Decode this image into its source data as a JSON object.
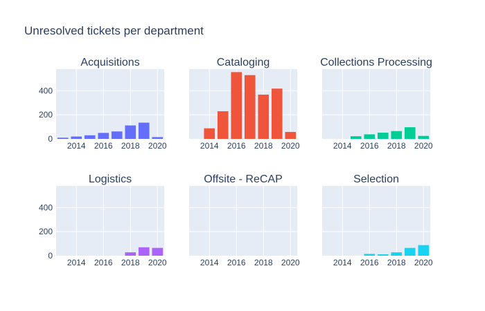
{
  "chart_data": {
    "type": "bar",
    "title": "Unresolved tickets per department",
    "x": [
      2013,
      2014,
      2015,
      2016,
      2017,
      2018,
      2019,
      2020
    ],
    "xtick_labels": [
      "2014",
      "2016",
      "2018",
      "2020"
    ],
    "xtick_values": [
      2014,
      2016,
      2018,
      2020
    ],
    "ylim": [
      0,
      580
    ],
    "ytick_values": [
      0,
      200,
      400
    ],
    "ytick_labels": [
      "0",
      "200",
      "400"
    ],
    "grid": true,
    "legend": "none",
    "series": [
      {
        "name": "Acquisitions",
        "color": "#636efa",
        "values": [
          10,
          20,
          30,
          50,
          62,
          112,
          135,
          15
        ]
      },
      {
        "name": "Cataloging",
        "color": "#ef553b",
        "values": [
          0,
          88,
          230,
          555,
          530,
          368,
          418,
          58
        ]
      },
      {
        "name": "Collections Processing",
        "color": "#00cc96",
        "values": [
          0,
          0,
          22,
          38,
          52,
          65,
          97,
          25
        ]
      },
      {
        "name": "Logistics",
        "color": "#ab63fa",
        "values": [
          0,
          0,
          0,
          0,
          0,
          28,
          70,
          65
        ]
      },
      {
        "name": "Offsite - ReCAP",
        "color": "#ffa15a",
        "values": [
          0,
          0,
          0,
          0,
          0,
          0,
          0,
          0
        ]
      },
      {
        "name": "Selection",
        "color": "#19d3f3",
        "values": [
          0,
          0,
          0,
          15,
          12,
          28,
          65,
          88
        ]
      }
    ]
  }
}
